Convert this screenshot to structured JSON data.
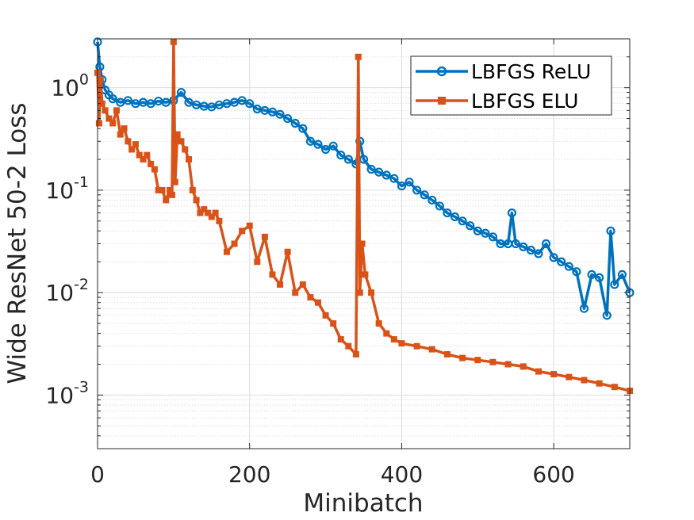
{
  "chart_data": {
    "type": "line",
    "title": "",
    "xlabel": "Minibatch",
    "ylabel": "Wide ResNet 50-2 Loss",
    "xlim": [
      0,
      700
    ],
    "ylim": [
      0.0003,
      3
    ],
    "yscale": "log",
    "grid": true,
    "legend_position": "top-right",
    "x_ticks": [
      {
        "value": 0,
        "label": "0"
      },
      {
        "value": 200,
        "label": "200"
      },
      {
        "value": 400,
        "label": "400"
      },
      {
        "value": 600,
        "label": "600"
      }
    ],
    "y_ticks": [
      {
        "value": 1,
        "base": "10",
        "exp": "0"
      },
      {
        "value": 0.1,
        "base": "10",
        "exp": "-1"
      },
      {
        "value": 0.01,
        "base": "10",
        "exp": "-2"
      },
      {
        "value": 0.001,
        "base": "10",
        "exp": "-3"
      }
    ],
    "series": [
      {
        "name": "LBFGS ReLU",
        "color": "#0072BD",
        "marker": "circle",
        "x": [
          0,
          3,
          6,
          10,
          15,
          20,
          30,
          40,
          50,
          60,
          70,
          80,
          90,
          100,
          110,
          120,
          130,
          140,
          150,
          160,
          170,
          180,
          190,
          200,
          210,
          220,
          230,
          240,
          250,
          260,
          270,
          280,
          290,
          300,
          310,
          320,
          330,
          340,
          345,
          350,
          360,
          370,
          380,
          390,
          400,
          410,
          420,
          430,
          440,
          450,
          460,
          470,
          480,
          490,
          500,
          510,
          520,
          530,
          540,
          545,
          550,
          560,
          570,
          580,
          590,
          600,
          610,
          620,
          630,
          640,
          650,
          660,
          670,
          675,
          680,
          690,
          700
        ],
        "y": [
          2.8,
          1.6,
          1.2,
          0.95,
          0.85,
          0.78,
          0.72,
          0.75,
          0.7,
          0.72,
          0.7,
          0.74,
          0.72,
          0.75,
          0.9,
          0.72,
          0.68,
          0.66,
          0.65,
          0.68,
          0.7,
          0.72,
          0.75,
          0.7,
          0.62,
          0.6,
          0.58,
          0.55,
          0.5,
          0.45,
          0.4,
          0.3,
          0.28,
          0.25,
          0.27,
          0.22,
          0.2,
          0.18,
          0.3,
          0.2,
          0.16,
          0.15,
          0.14,
          0.13,
          0.11,
          0.12,
          0.1,
          0.09,
          0.08,
          0.07,
          0.06,
          0.055,
          0.05,
          0.045,
          0.04,
          0.038,
          0.035,
          0.03,
          0.03,
          0.06,
          0.03,
          0.028,
          0.026,
          0.024,
          0.03,
          0.022,
          0.02,
          0.018,
          0.016,
          0.007,
          0.015,
          0.014,
          0.006,
          0.04,
          0.012,
          0.015,
          0.01
        ]
      },
      {
        "name": "LBFGS ELU",
        "color": "#D95319",
        "marker": "square",
        "x": [
          0,
          2,
          4,
          6,
          10,
          15,
          20,
          25,
          30,
          35,
          40,
          45,
          50,
          55,
          60,
          65,
          70,
          75,
          80,
          85,
          90,
          95,
          98,
          100,
          102,
          105,
          110,
          115,
          120,
          125,
          130,
          135,
          140,
          145,
          150,
          155,
          160,
          170,
          180,
          190,
          200,
          210,
          220,
          230,
          240,
          250,
          260,
          270,
          280,
          290,
          300,
          310,
          320,
          330,
          340,
          343,
          345,
          348,
          352,
          360,
          370,
          380,
          390,
          400,
          420,
          440,
          460,
          480,
          500,
          520,
          540,
          560,
          580,
          600,
          620,
          640,
          660,
          680,
          700
        ],
        "y": [
          1.4,
          0.45,
          1.2,
          0.7,
          0.6,
          0.5,
          0.45,
          0.6,
          0.35,
          0.4,
          0.3,
          0.25,
          0.28,
          0.22,
          0.2,
          0.22,
          0.18,
          0.16,
          0.1,
          0.1,
          0.08,
          0.1,
          0.09,
          2.8,
          0.12,
          0.35,
          0.3,
          0.25,
          0.2,
          0.1,
          0.08,
          0.06,
          0.065,
          0.06,
          0.055,
          0.06,
          0.05,
          0.025,
          0.03,
          0.04,
          0.045,
          0.02,
          0.035,
          0.015,
          0.012,
          0.025,
          0.01,
          0.012,
          0.009,
          0.008,
          0.006,
          0.005,
          0.0035,
          0.003,
          0.0025,
          2.0,
          0.01,
          0.03,
          0.015,
          0.01,
          0.005,
          0.004,
          0.0035,
          0.0032,
          0.003,
          0.0028,
          0.0025,
          0.0023,
          0.0022,
          0.0021,
          0.002,
          0.0019,
          0.0017,
          0.0016,
          0.0015,
          0.0014,
          0.0013,
          0.0012,
          0.0011
        ]
      }
    ]
  }
}
